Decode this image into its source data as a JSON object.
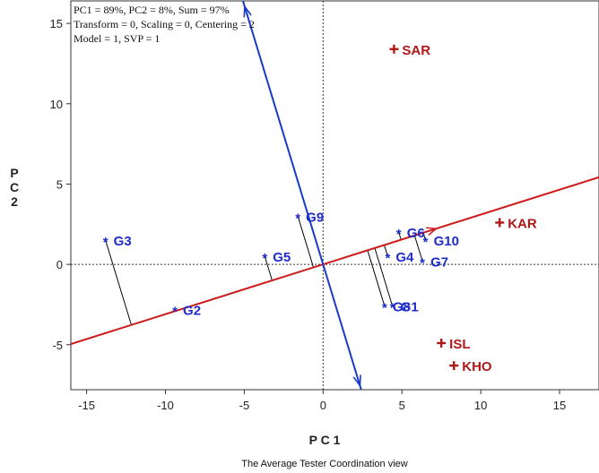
{
  "chart_data": {
    "type": "scatter",
    "info_lines": [
      "PC1 = 89%, PC2 = 8%, Sum = 97%",
      "Transform = 0, Scaling = 0, Centering = 2",
      "Model = 1, SVP = 1"
    ],
    "xlabel": "P C 1",
    "ylabel": "P\nC\n2",
    "caption": "The Average Tester Coordination view",
    "xlim": [
      -16,
      17.5
    ],
    "ylim": [
      -7.8,
      16.4
    ],
    "xticks": [
      -15,
      -10,
      -5,
      0,
      5,
      10,
      15
    ],
    "yticks": [
      -5,
      0,
      5,
      10,
      15
    ],
    "series": [
      {
        "type": "genotypes",
        "color": "#1f2ccc",
        "points": [
          {
            "label": "G1",
            "x": 4.4,
            "y": -2.6
          },
          {
            "label": "G2",
            "x": -9.4,
            "y": -2.8
          },
          {
            "label": "G3",
            "x": -13.8,
            "y": 1.5
          },
          {
            "label": "G4",
            "x": 4.1,
            "y": 0.5
          },
          {
            "label": "G5",
            "x": -3.7,
            "y": 0.5
          },
          {
            "label": "G6",
            "x": 4.8,
            "y": 2.0
          },
          {
            "label": "G7",
            "x": 6.3,
            "y": 0.2
          },
          {
            "label": "G8",
            "x": 3.9,
            "y": -2.6
          },
          {
            "label": "G9",
            "x": -1.6,
            "y": 3.0
          },
          {
            "label": "G10",
            "x": 6.5,
            "y": 1.5
          }
        ]
      },
      {
        "type": "environments",
        "color": "#b01818",
        "points": [
          {
            "label": "SAR",
            "x": 4.5,
            "y": 13.4
          },
          {
            "label": "KAR",
            "x": 11.2,
            "y": 2.6
          },
          {
            "label": "ISL",
            "x": 7.5,
            "y": -4.9
          },
          {
            "label": "KHO",
            "x": 8.3,
            "y": -6.3
          }
        ]
      }
    ],
    "ate_axis": {
      "direction": [
        0.955,
        0.296
      ],
      "color": "#cc1a1a"
    },
    "ate_perpendicular": {
      "direction": [
        -0.296,
        0.955
      ],
      "color": "#1a3acc"
    },
    "colors": {
      "genotype": "#1f2ccc",
      "environment": "#b01818",
      "projection": "#000000"
    }
  }
}
